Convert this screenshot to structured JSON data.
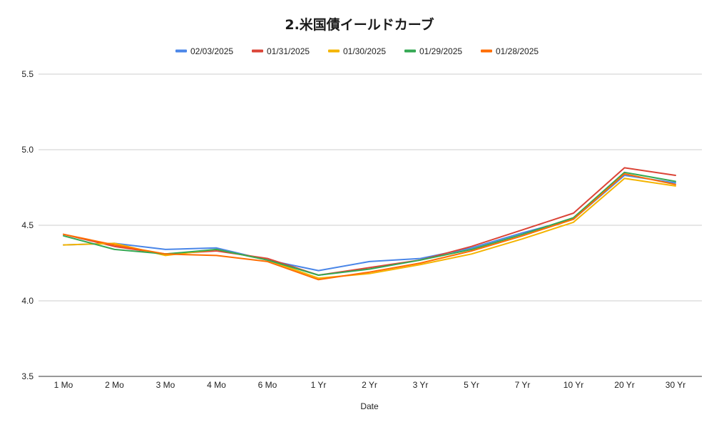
{
  "chart_data": {
    "type": "line",
    "title": "2.米国債イールドカーブ",
    "xlabel": "Date",
    "ylabel": "",
    "categories": [
      "1 Mo",
      "2 Mo",
      "3 Mo",
      "4 Mo",
      "6 Mo",
      "1 Yr",
      "2 Yr",
      "3 Yr",
      "5 Yr",
      "7 Yr",
      "10 Yr",
      "20 Yr",
      "30 Yr"
    ],
    "ylim": [
      3.5,
      5.5
    ],
    "yticks": [
      "3.5",
      "4.0",
      "4.5",
      "5.0",
      "5.5"
    ],
    "grid": true,
    "legend_position": "top",
    "series": [
      {
        "name": "02/03/2025",
        "color": "#4a86e8",
        "values": [
          4.37,
          4.38,
          4.34,
          4.35,
          4.27,
          4.2,
          4.26,
          4.28,
          4.35,
          4.45,
          4.54,
          4.83,
          4.78
        ]
      },
      {
        "name": "01/31/2025",
        "color": "#db4437",
        "values": [
          4.44,
          4.36,
          4.31,
          4.33,
          4.28,
          4.17,
          4.22,
          4.27,
          4.36,
          4.47,
          4.58,
          4.88,
          4.83
        ]
      },
      {
        "name": "01/30/2025",
        "color": "#f4b400",
        "values": [
          4.37,
          4.38,
          4.3,
          4.34,
          4.27,
          4.15,
          4.18,
          4.24,
          4.31,
          4.41,
          4.52,
          4.81,
          4.76
        ]
      },
      {
        "name": "01/29/2025",
        "color": "#34a853",
        "values": [
          4.43,
          4.34,
          4.31,
          4.34,
          4.27,
          4.17,
          4.21,
          4.27,
          4.34,
          4.44,
          4.55,
          4.85,
          4.79
        ]
      },
      {
        "name": "01/28/2025",
        "color": "#ff6d01",
        "values": [
          4.44,
          4.37,
          4.31,
          4.3,
          4.26,
          4.14,
          4.19,
          4.25,
          4.33,
          4.43,
          4.54,
          4.84,
          4.77
        ]
      }
    ]
  }
}
